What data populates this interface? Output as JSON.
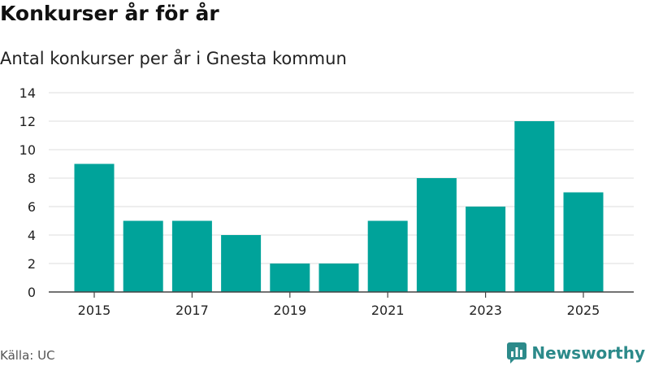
{
  "chart_data": {
    "type": "bar",
    "title": "Konkurser år för år",
    "subtitle": "Antal konkurser per år i Gnesta kommun",
    "categories": [
      "2015",
      "2016",
      "2017",
      "2018",
      "2019",
      "2020",
      "2021",
      "2022",
      "2023",
      "2024",
      "2025"
    ],
    "x_tick_labels": [
      "2015",
      "2017",
      "2019",
      "2021",
      "2023",
      "2025"
    ],
    "values": [
      9,
      5,
      5,
      4,
      2,
      2,
      5,
      8,
      6,
      12,
      7
    ],
    "y_ticks": [
      "0",
      "2",
      "4",
      "6",
      "8",
      "10",
      "12",
      "14"
    ],
    "ylim": [
      0,
      14
    ],
    "xlabel": "",
    "ylabel": "",
    "grid": true,
    "bar_color": "#00a39a"
  },
  "footer": {
    "source": "Källa: UC",
    "brand": "Newsworthy",
    "brand_color": "#2c8a8a"
  }
}
